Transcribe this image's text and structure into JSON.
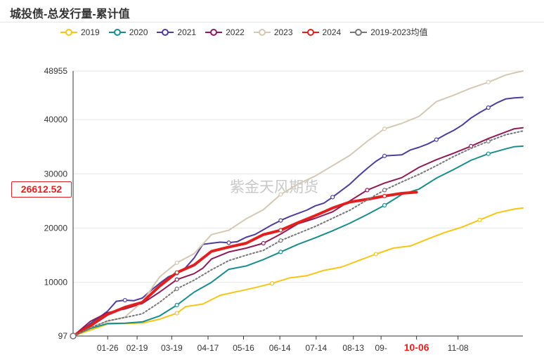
{
  "title": "城投债-总发行量-累计值",
  "watermark": "紫金天风期货",
  "current_value_label": "26612.52",
  "chart_data": {
    "type": "line",
    "title": "城投债-总发行量-累计值",
    "xlabel": "",
    "ylabel": "",
    "ylim": [
      97,
      48955
    ],
    "y_ticks": [
      {
        "label": "48955",
        "value": 48955
      },
      {
        "label": "40000",
        "value": 40000
      },
      {
        "label": "30000",
        "value": 30000
      },
      {
        "label": "20000",
        "value": 20000
      },
      {
        "label": "10000",
        "value": 10000
      },
      {
        "label": "97",
        "value": 97
      }
    ],
    "x_domain": [
      0,
      52
    ],
    "x_ticks": [
      {
        "label": "01-26",
        "x": 4
      },
      {
        "label": "02-19",
        "x": 7.4
      },
      {
        "label": "03-19",
        "x": 11.4
      },
      {
        "label": "04-17",
        "x": 15.6
      },
      {
        "label": "05-16",
        "x": 19.7
      },
      {
        "label": "06-14",
        "x": 23.9
      },
      {
        "label": "07-14",
        "x": 28.1
      },
      {
        "label": "08-13",
        "x": 32.4
      },
      {
        "label": "09-",
        "x": 35.6
      },
      {
        "label": "10-06",
        "x": 39.7,
        "highlight": true
      },
      {
        "label": "11-08",
        "x": 44.5
      }
    ],
    "highlight_value": 26612.52,
    "series": [
      {
        "name": "2019",
        "color": "#f5c518",
        "width": 2,
        "dashed": false,
        "x": [
          0,
          2,
          4,
          6,
          8,
          10,
          12,
          13,
          15,
          17,
          19,
          21,
          23,
          25,
          27,
          29,
          31,
          33,
          35,
          37,
          39,
          41,
          43,
          45,
          47,
          49,
          51,
          52
        ],
        "y": [
          97,
          1200,
          2300,
          2400,
          2500,
          3200,
          4300,
          5500,
          6000,
          7600,
          8300,
          9000,
          9800,
          10800,
          11200,
          12200,
          12800,
          14000,
          15200,
          16300,
          16700,
          18000,
          19200,
          20200,
          21500,
          22800,
          23500,
          23700
        ]
      },
      {
        "name": "2020",
        "color": "#1a8c8c",
        "width": 2,
        "dashed": false,
        "x": [
          0,
          2,
          4,
          6,
          8,
          10,
          12,
          14,
          16,
          18,
          20,
          22,
          24,
          26,
          28,
          30,
          32,
          34,
          36,
          38,
          40,
          42,
          44,
          46,
          48,
          50,
          51,
          52
        ],
        "y": [
          97,
          1500,
          2400,
          2450,
          2700,
          3800,
          5800,
          8200,
          10000,
          12400,
          13000,
          14200,
          15600,
          17000,
          18200,
          19500,
          20900,
          22500,
          24200,
          26200,
          27200,
          29200,
          30800,
          32500,
          33700,
          34600,
          35000,
          35100
        ]
      },
      {
        "name": "2021",
        "color": "#4e3d99",
        "width": 2,
        "dashed": false,
        "x": [
          0,
          1,
          2,
          3,
          4,
          5,
          6,
          7,
          8,
          9,
          10,
          11,
          12,
          13,
          14,
          15,
          16,
          17,
          18,
          19,
          20,
          21,
          22,
          23,
          24,
          25,
          26,
          27,
          28,
          29,
          30,
          31,
          32,
          33,
          34,
          35,
          36,
          37,
          38,
          39,
          40,
          41,
          42,
          43,
          44,
          45,
          46,
          47,
          48,
          49,
          50,
          51,
          52
        ],
        "y": [
          97,
          1200,
          2400,
          3500,
          4700,
          6500,
          6700,
          6600,
          7100,
          8500,
          9800,
          11000,
          11700,
          12700,
          14500,
          17000,
          17200,
          17400,
          17300,
          17500,
          18300,
          18800,
          19700,
          20600,
          21400,
          22100,
          22700,
          23300,
          24100,
          24600,
          25700,
          26900,
          28100,
          29600,
          31000,
          32300,
          33300,
          33400,
          33500,
          34400,
          34900,
          35500,
          36300,
          37200,
          38000,
          39000,
          40300,
          41300,
          42200,
          43100,
          43800,
          44000,
          44100
        ]
      },
      {
        "name": "2022",
        "color": "#8e1b57",
        "width": 2,
        "dashed": false,
        "x": [
          0,
          2,
          4,
          6,
          8,
          10,
          12,
          14,
          15,
          16,
          18,
          20,
          22,
          24,
          26,
          28,
          30,
          32,
          34,
          36,
          38,
          40,
          42,
          44,
          46,
          48,
          50,
          51,
          52
        ],
        "y": [
          97,
          2800,
          4400,
          5100,
          6100,
          8200,
          10500,
          11600,
          12600,
          14300,
          15600,
          16300,
          17200,
          18900,
          20800,
          21800,
          23000,
          25000,
          27000,
          28300,
          29300,
          31200,
          32600,
          33800,
          35100,
          36500,
          37700,
          38300,
          38500
        ]
      },
      {
        "name": "2023",
        "color": "#d4c8b4",
        "width": 2,
        "dashed": false,
        "x": [
          0,
          2,
          4,
          6,
          8,
          10,
          12,
          14,
          16,
          18,
          20,
          22,
          24,
          26,
          28,
          30,
          32,
          34,
          36,
          38,
          40,
          42,
          44,
          46,
          48,
          50,
          51,
          52
        ],
        "y": [
          97,
          1700,
          2800,
          3600,
          6400,
          11000,
          13600,
          15300,
          18800,
          19600,
          21700,
          23400,
          26200,
          28100,
          29600,
          31500,
          33400,
          36000,
          38300,
          39300,
          40600,
          43300,
          44500,
          45800,
          46900,
          48200,
          48600,
          48955
        ]
      },
      {
        "name": "2024",
        "color": "#e02020",
        "width": 4,
        "dashed": false,
        "x": [
          0,
          2,
          4,
          6,
          8,
          10,
          12,
          14,
          16,
          18,
          20,
          22,
          24,
          26,
          28,
          30,
          32,
          34,
          36,
          38,
          39.7
        ],
        "y": [
          97,
          2000,
          4100,
          5400,
          6300,
          9300,
          11800,
          13200,
          15700,
          16500,
          17200,
          18800,
          19600,
          21000,
          22300,
          23700,
          24800,
          25300,
          25900,
          26400,
          26612.52
        ]
      },
      {
        "name": "2019-2023均值",
        "color": "#777777",
        "width": 2,
        "dashed": true,
        "x": [
          0,
          2,
          4,
          6,
          8,
          10,
          12,
          14,
          16,
          18,
          20,
          22,
          24,
          26,
          28,
          30,
          32,
          34,
          36,
          38,
          40,
          42,
          44,
          46,
          48,
          50,
          52
        ],
        "y": [
          97,
          1600,
          2900,
          3500,
          4200,
          6300,
          8800,
          10400,
          12300,
          14000,
          15000,
          15900,
          17700,
          19000,
          20300,
          21800,
          23300,
          25200,
          27000,
          28500,
          29900,
          31500,
          33200,
          34700,
          36000,
          37200,
          37900
        ]
      }
    ]
  }
}
